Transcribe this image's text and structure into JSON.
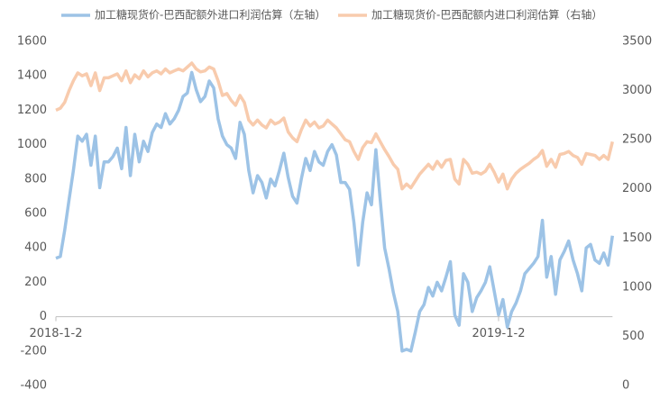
{
  "chart_data": {
    "type": "line",
    "categories": [
      "2018-1-2",
      null,
      null,
      null,
      null,
      null,
      null,
      null,
      null,
      null,
      null,
      null,
      null,
      null,
      null,
      null,
      null,
      null,
      null,
      null,
      null,
      null,
      null,
      null,
      null,
      null,
      null,
      null,
      null,
      null,
      null,
      null,
      null,
      null,
      null,
      null,
      null,
      null,
      null,
      null,
      null,
      null,
      null,
      null,
      null,
      null,
      null,
      null,
      null,
      null,
      null,
      null,
      null,
      null,
      null,
      null,
      null,
      null,
      null,
      null,
      null,
      null,
      null,
      null,
      null,
      null,
      null,
      null,
      null,
      null,
      null,
      null,
      null,
      null,
      null,
      null,
      null,
      null,
      null,
      null,
      null,
      null,
      null,
      null,
      null,
      null,
      null,
      null,
      null,
      null,
      null,
      null,
      null,
      null,
      null,
      null,
      null,
      null,
      null,
      null,
      null,
      "2019-1-2",
      null,
      null,
      null,
      null,
      null,
      null,
      null,
      null,
      null,
      null,
      null,
      null,
      null,
      null,
      null,
      null,
      null,
      null,
      null,
      null,
      null,
      null,
      null,
      null,
      null,
      null
    ],
    "series": [
      {
        "name": "加工糖现货价-巴西配额外进口利润估算（左轴）",
        "color": "#9dc3e6",
        "axis": "y",
        "values": [
          340,
          350,
          500,
          680,
          850,
          1050,
          1020,
          1060,
          880,
          1050,
          750,
          900,
          900,
          930,
          980,
          860,
          1100,
          820,
          1060,
          900,
          1020,
          960,
          1070,
          1120,
          1100,
          1180,
          1120,
          1150,
          1200,
          1280,
          1300,
          1420,
          1320,
          1250,
          1280,
          1370,
          1330,
          1150,
          1050,
          1000,
          980,
          920,
          1130,
          1060,
          850,
          720,
          820,
          780,
          690,
          800,
          760,
          850,
          950,
          810,
          700,
          660,
          800,
          920,
          850,
          960,
          900,
          880,
          960,
          1000,
          940,
          780,
          780,
          740,
          550,
          300,
          550,
          720,
          650,
          970,
          680,
          400,
          280,
          140,
          30,
          -200,
          -190,
          -200,
          -90,
          30,
          70,
          170,
          120,
          200,
          150,
          230,
          320,
          10,
          -50,
          250,
          200,
          30,
          110,
          150,
          200,
          290,
          150,
          10,
          100,
          -60,
          30,
          80,
          150,
          250,
          280,
          310,
          350,
          560,
          230,
          350,
          130,
          330,
          380,
          440,
          330,
          250,
          150,
          400,
          420,
          330,
          310,
          370,
          300,
          470
        ]
      },
      {
        "name": "加工糖现货价-巴西配额内进口利润估算（右轴）",
        "color": "#f8cbad",
        "axis": "y2",
        "values": [
          2800,
          2820,
          2880,
          3000,
          3100,
          3180,
          3150,
          3170,
          3050,
          3180,
          3000,
          3130,
          3130,
          3150,
          3170,
          3100,
          3200,
          3080,
          3160,
          3120,
          3200,
          3140,
          3180,
          3200,
          3170,
          3220,
          3180,
          3200,
          3220,
          3200,
          3240,
          3280,
          3220,
          3190,
          3200,
          3240,
          3220,
          3100,
          2950,
          2970,
          2900,
          2850,
          2950,
          2880,
          2700,
          2650,
          2700,
          2650,
          2620,
          2700,
          2660,
          2680,
          2720,
          2580,
          2520,
          2480,
          2600,
          2700,
          2640,
          2680,
          2620,
          2640,
          2700,
          2660,
          2620,
          2560,
          2500,
          2480,
          2380,
          2300,
          2420,
          2480,
          2470,
          2560,
          2480,
          2400,
          2330,
          2250,
          2200,
          2000,
          2050,
          2010,
          2080,
          2150,
          2200,
          2250,
          2200,
          2280,
          2220,
          2290,
          2300,
          2100,
          2050,
          2300,
          2250,
          2160,
          2170,
          2150,
          2180,
          2250,
          2170,
          2070,
          2150,
          2000,
          2100,
          2160,
          2200,
          2230,
          2260,
          2300,
          2330,
          2390,
          2230,
          2300,
          2220,
          2350,
          2360,
          2380,
          2340,
          2320,
          2250,
          2360,
          2350,
          2340,
          2300,
          2340,
          2300,
          2480
        ]
      }
    ],
    "ylim": [
      -400,
      1600
    ],
    "yticks": [
      -400,
      -200,
      0,
      200,
      400,
      600,
      800,
      1000,
      1200,
      1400,
      1600
    ],
    "y2lim": [
      0,
      3500
    ],
    "y2ticks": [
      0,
      500,
      1000,
      1500,
      2000,
      2500,
      3000,
      3500
    ]
  }
}
